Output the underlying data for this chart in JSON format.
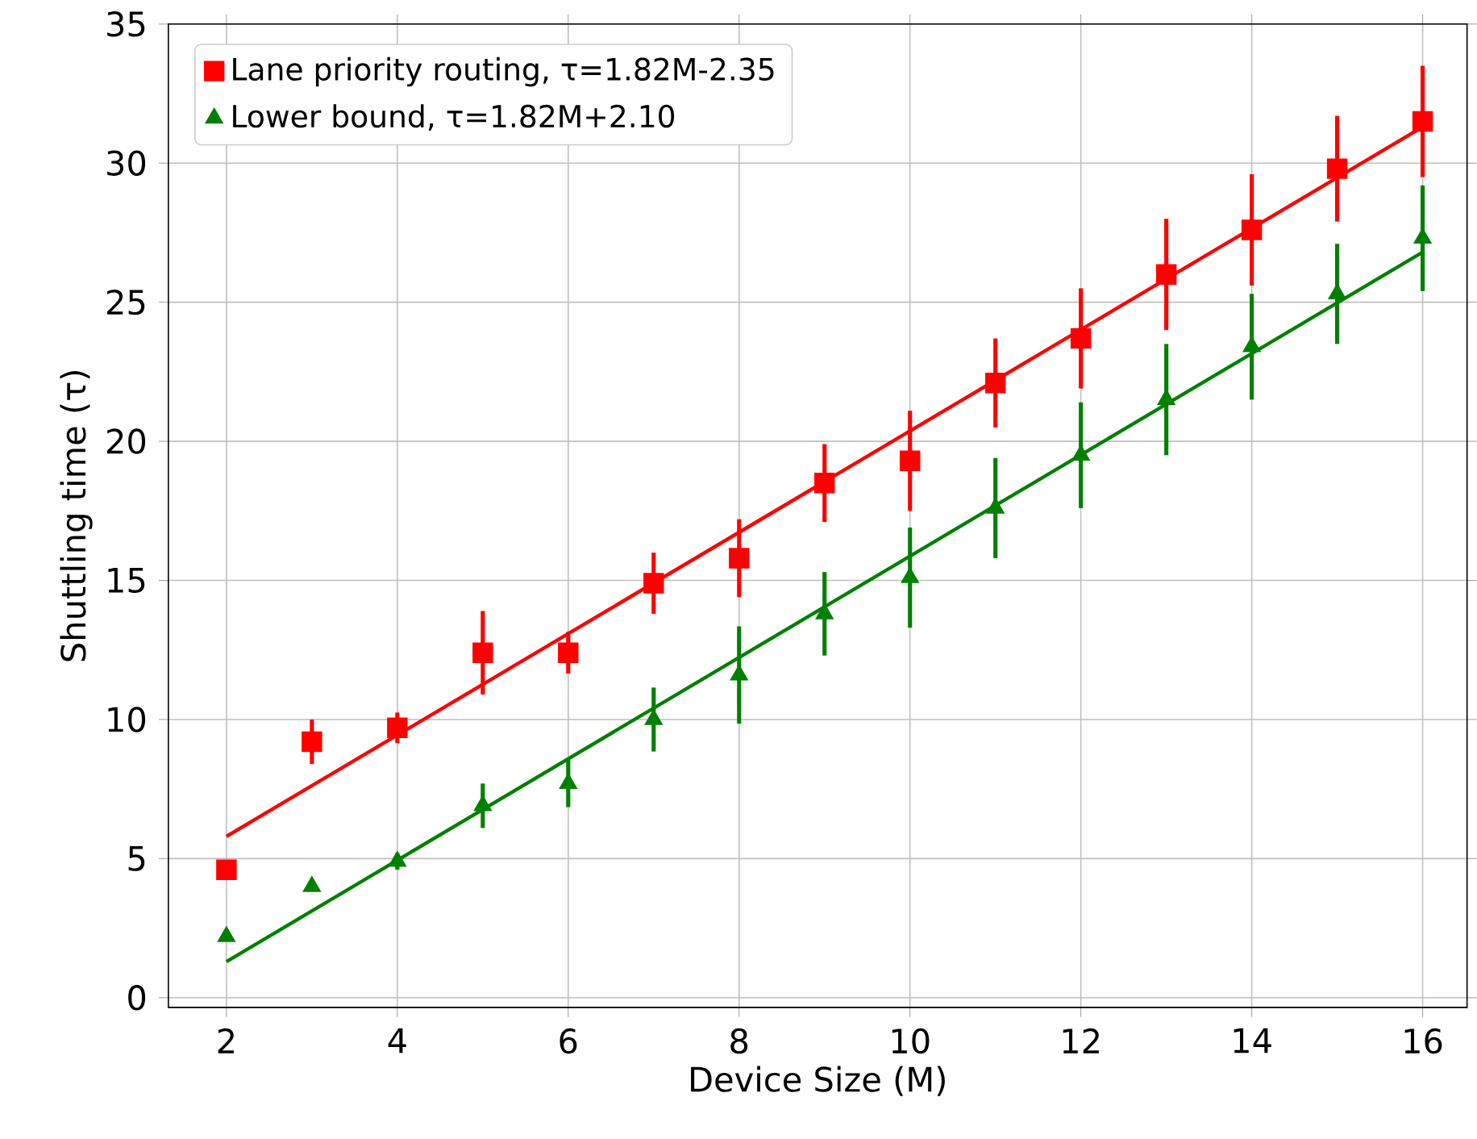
{
  "chart_data": {
    "type": "scatter",
    "xlabel": "Device Size (M)",
    "ylabel": "Shuttling time (τ)",
    "xlim": [
      1.32,
      16.52
    ],
    "ylim": [
      -0.35,
      35
    ],
    "xticks": [
      2,
      4,
      6,
      8,
      10,
      12,
      14,
      16
    ],
    "yticks": [
      0,
      5,
      10,
      15,
      20,
      25,
      30,
      35
    ],
    "grid": true,
    "legend": "top left",
    "series": [
      {
        "name": "Lane priority routing, τ=1.82M-2.35",
        "marker": "square",
        "color": "#ff0000",
        "x": [
          2,
          3,
          4,
          5,
          6,
          7,
          8,
          9,
          10,
          11,
          12,
          13,
          14,
          15,
          16
        ],
        "values": [
          4.6,
          9.2,
          9.7,
          12.4,
          12.4,
          14.9,
          15.8,
          18.5,
          19.3,
          22.1,
          23.7,
          26.0,
          27.6,
          29.8,
          31.5
        ],
        "errors": [
          null,
          0.8,
          0.55,
          1.5,
          0.75,
          1.1,
          1.4,
          1.4,
          1.8,
          1.6,
          1.8,
          2.0,
          2.0,
          1.9,
          2.0
        ]
      },
      {
        "name": "Lower bound, τ=1.82M+2.10",
        "marker": "triangle",
        "color": "#008000",
        "x": [
          2,
          3,
          4,
          5,
          6,
          7,
          8,
          9,
          10,
          11,
          12,
          13,
          14,
          15,
          16
        ],
        "values": [
          2.2,
          4.0,
          4.9,
          6.9,
          7.7,
          10.0,
          11.6,
          13.8,
          15.1,
          17.6,
          19.5,
          21.5,
          23.4,
          25.3,
          27.3
        ],
        "errors": [
          null,
          null,
          0.3,
          0.8,
          0.85,
          1.15,
          1.75,
          1.5,
          1.8,
          1.8,
          1.9,
          2.0,
          1.9,
          1.8,
          1.9
        ]
      },
      {
        "type": "line",
        "color": "#ff0000",
        "x": [
          2,
          16
        ],
        "values": [
          5.8,
          31.3
        ]
      },
      {
        "type": "line",
        "color": "#008000",
        "x": [
          2,
          16
        ],
        "values": [
          1.3,
          26.8
        ]
      }
    ]
  }
}
